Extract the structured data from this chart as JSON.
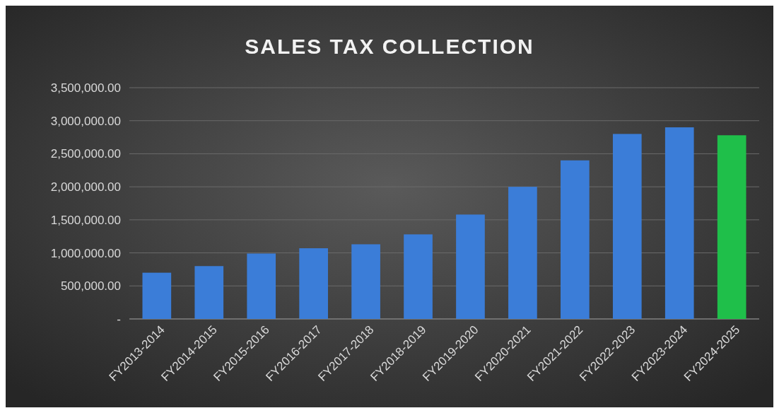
{
  "chart_data": {
    "type": "bar",
    "title": "SALES TAX COLLECTION",
    "categories": [
      "FY2013-2014",
      "FY2014-2015",
      "FY2015-2016",
      "FY2016-2017",
      "FY2017-2018",
      "FY2018-2019",
      "FY2019-2020",
      "FY2020-2021",
      "FY2021-2022",
      "FY2022-2023",
      "FY2023-2024",
      "FY2024-2025"
    ],
    "values": [
      700000,
      800000,
      990000,
      1070000,
      1130000,
      1280000,
      1580000,
      2000000,
      2400000,
      2800000,
      2900000,
      2780000
    ],
    "colors": [
      "#3b7dd8",
      "#3b7dd8",
      "#3b7dd8",
      "#3b7dd8",
      "#3b7dd8",
      "#3b7dd8",
      "#3b7dd8",
      "#3b7dd8",
      "#3b7dd8",
      "#3b7dd8",
      "#3b7dd8",
      "#1fbf4a"
    ],
    "ylim": [
      0,
      3500000
    ],
    "yticks": [
      {
        "value": 0,
        "label": "-"
      },
      {
        "value": 500000,
        "label": "500,000.00"
      },
      {
        "value": 1000000,
        "label": "1,000,000.00"
      },
      {
        "value": 1500000,
        "label": "1,500,000.00"
      },
      {
        "value": 2000000,
        "label": "2,000,000.00"
      },
      {
        "value": 2500000,
        "label": "2,500,000.00"
      },
      {
        "value": 3000000,
        "label": "3,000,000.00"
      },
      {
        "value": 3500000,
        "label": "3,500,000.00"
      }
    ],
    "grid": "y"
  }
}
